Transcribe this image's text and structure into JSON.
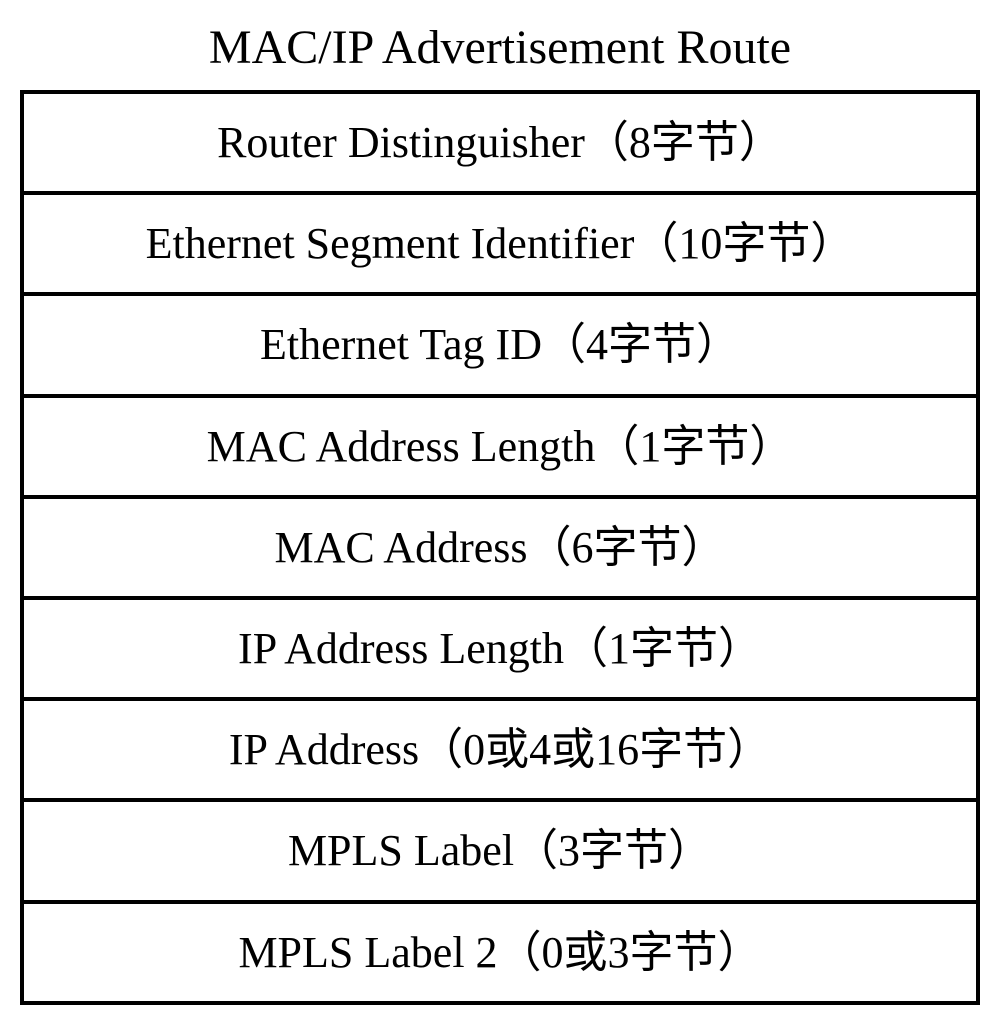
{
  "title": "MAC/IP Advertisement Route",
  "rows": [
    {
      "field": "Router Distinguisher",
      "bytes": "（8字节）"
    },
    {
      "field": "Ethernet Segment Identifier",
      "bytes": "（10字节）"
    },
    {
      "field": "Ethernet Tag ID",
      "bytes": "（4字节）"
    },
    {
      "field": "MAC Address Length",
      "bytes": "（1字节）"
    },
    {
      "field": "MAC Address",
      "bytes": "（6字节）"
    },
    {
      "field": "IP Address Length",
      "bytes": "（1字节）"
    },
    {
      "field": "IP Address",
      "bytes": "（0或4或16字节）"
    },
    {
      "field": "MPLS Label",
      "bytes": "（3字节）"
    },
    {
      "field": "MPLS Label 2",
      "bytes": "（0或3字节）"
    }
  ],
  "styling": {
    "border_color": "#000000",
    "border_width": 4,
    "background_color": "#ffffff",
    "text_color": "#000000",
    "title_fontsize": 48,
    "cell_fontsize": 44,
    "font_family": "Times New Roman"
  }
}
